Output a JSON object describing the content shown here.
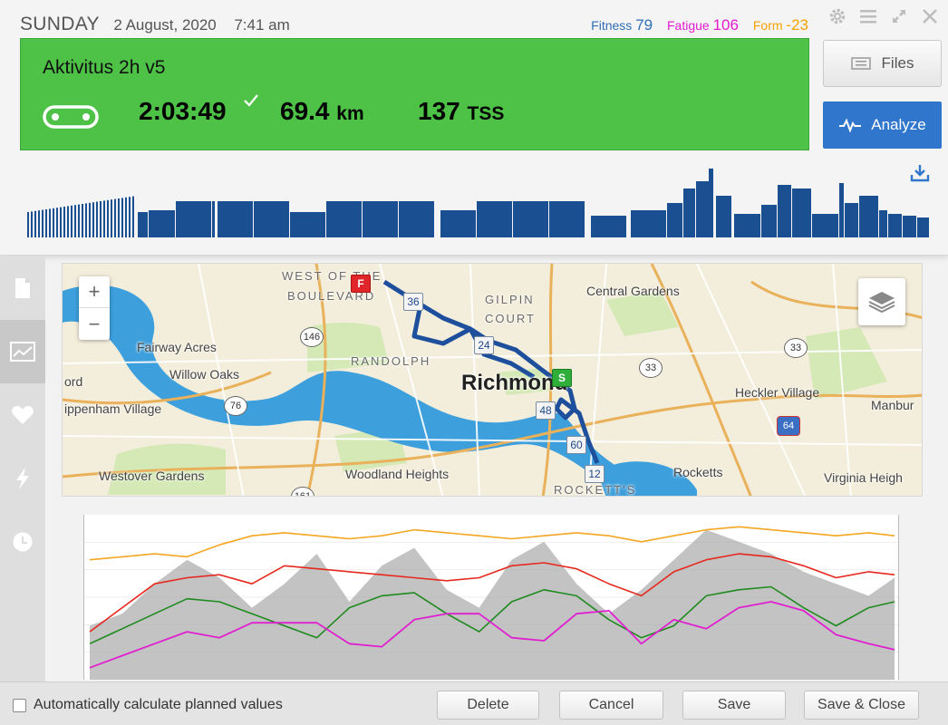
{
  "header": {
    "day": "SUNDAY",
    "date": "2 August, 2020",
    "time": "7:41 am",
    "fitness_label": "Fitness",
    "fitness_value": "79",
    "fatigue_label": "Fatigue",
    "fatigue_value": "106",
    "form_label": "Form",
    "form_value": "-23"
  },
  "window_icons": [
    "gear-icon",
    "menu-icon",
    "expand-icon",
    "close-icon"
  ],
  "activity": {
    "title": "Aktivitus 2h v5",
    "sport_icon": "bike-chain-icon",
    "duration": "2:03:49",
    "distance_value": "69.4",
    "distance_unit": "km",
    "tss_value": "137",
    "tss_unit": "TSS",
    "completed": true
  },
  "buttons": {
    "files": "Files",
    "analyze": "Analyze"
  },
  "sidebar": {
    "items": [
      {
        "icon": "document-icon",
        "active": false
      },
      {
        "icon": "chart-icon",
        "active": true
      },
      {
        "icon": "heart-icon",
        "active": false
      },
      {
        "icon": "lightning-icon",
        "active": false
      },
      {
        "icon": "clock-icon",
        "active": false
      }
    ]
  },
  "map": {
    "labels": [
      "WEST OF THE",
      "BOULEVARD",
      "GILPIN",
      "COURT",
      "Central Gardens",
      "Fairway Acres",
      "RANDOLPH",
      "Willow Oaks",
      "ord",
      "ippenham Village",
      "Richmond",
      "Heckler Village",
      "Manbur",
      "Westover Gardens",
      "Woodland Heights",
      "Rocketts",
      "Virginia Heigh",
      "ROCKETT'S"
    ],
    "route_markers": [
      "36",
      "24",
      "48",
      "60",
      "12"
    ],
    "start_flag": "S",
    "finish_flag": "F",
    "road_shields": [
      "146",
      "76",
      "33",
      "33",
      "64",
      "161"
    ],
    "colors": {
      "route": "#1d4f9c",
      "river": "#3a9bd8",
      "land": "#f3eddb",
      "park": "#c6e3a4"
    }
  },
  "power_profile": {
    "colors": {
      "bars": "#1a4f92"
    }
  },
  "chart_data": {
    "type": "line",
    "x": [
      0,
      5,
      10,
      15,
      20,
      25,
      30,
      35,
      40,
      45,
      50,
      55,
      60,
      65,
      70,
      75,
      80,
      85,
      90,
      95,
      100,
      105,
      110,
      115,
      120,
      124
    ],
    "series": [
      {
        "values": [
          60,
          85,
          110,
          135,
          130,
          110,
          90,
          70,
          120,
          140,
          145,
          110,
          80,
          130,
          150,
          140,
          100,
          70,
          90,
          140,
          150,
          155,
          120,
          90,
          120,
          130
        ]
      },
      {
        "values": [
          80,
          120,
          160,
          170,
          175,
          160,
          190,
          185,
          180,
          175,
          170,
          165,
          170,
          190,
          195,
          185,
          160,
          140,
          180,
          200,
          210,
          205,
          190,
          170,
          180,
          175
        ]
      },
      {
        "values": [
          200,
          205,
          210,
          205,
          225,
          240,
          245,
          240,
          235,
          240,
          250,
          245,
          240,
          235,
          240,
          245,
          240,
          230,
          240,
          250,
          255,
          250,
          245,
          240,
          245,
          240
        ]
      },
      {
        "values": [
          90,
          110,
          160,
          200,
          170,
          120,
          160,
          210,
          130,
          190,
          220,
          150,
          120,
          200,
          230,
          160,
          110,
          150,
          200,
          250,
          230,
          210,
          180,
          160,
          140,
          170
        ]
      },
      {
        "values": [
          20,
          40,
          60,
          80,
          70,
          95,
          95,
          95,
          60,
          55,
          100,
          110,
          110,
          70,
          65,
          110,
          115,
          60,
          100,
          85,
          120,
          130,
          115,
          75,
          60,
          50
        ]
      }
    ],
    "colors": [
      "#1f8a1f",
      "#e6281e",
      "#f5a623",
      "#909090",
      "#e020d0"
    ],
    "ylim": [
      0,
      260
    ]
  },
  "footer": {
    "auto_calc_label": "Automatically calculate planned values",
    "auto_calc_checked": false,
    "delete": "Delete",
    "cancel": "Cancel",
    "save": "Save",
    "save_close": "Save & Close"
  }
}
